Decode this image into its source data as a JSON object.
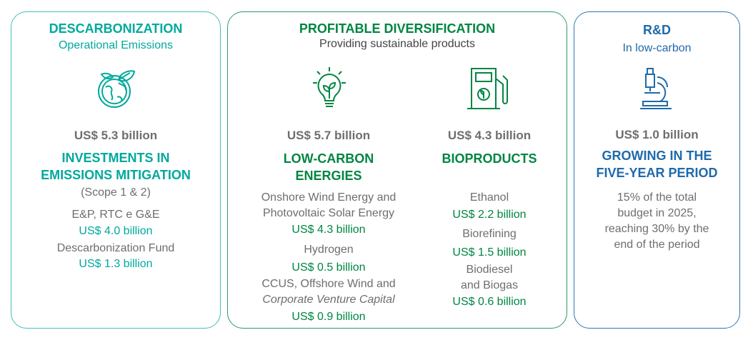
{
  "panels": [
    {
      "title": "DESCARBONIZATION",
      "subtitle": "Operational Emissions",
      "amount": "US$ 5.3 billion",
      "heading": "INVESTMENTS IN\nEMISSIONS MITIGATION",
      "note": "(Scope 1 & 2)",
      "items": [
        {
          "label": "E&P, RTC e G&E",
          "amount": "US$ 4.0 billion"
        },
        {
          "label": "Descarbonization Fund",
          "amount": "US$ 1.3 billion"
        }
      ]
    },
    {
      "title": "PROFITABLE DIVERSIFICATION",
      "subtitle": "Providing sustainable products",
      "columns": [
        {
          "amount": "US$ 5.7 billion",
          "heading": "LOW-CARBON\nENERGIES",
          "items": [
            {
              "label": "Onshore Wind Energy and\nPhotovoltaic Solar Energy",
              "amount": "US$ 4.3 billion"
            },
            {
              "label": "Hydrogen",
              "amount": "US$ 0.5 billion"
            },
            {
              "label": "CCUS, Offshore Wind and",
              "label_italic": "Corporate Venture Capital",
              "amount": "US$ 0.9 billion"
            }
          ]
        },
        {
          "amount": "US$ 4.3 billion",
          "heading": "BIOPRODUCTS",
          "items": [
            {
              "label": "Ethanol",
              "amount": "US$ 2.2 billion"
            },
            {
              "label": "Biorefining",
              "amount": "US$ 1.5 billion"
            },
            {
              "label": "Biodiesel\nand Biogas",
              "amount": "US$ 0.6 billion"
            }
          ]
        }
      ]
    },
    {
      "title": "R&D",
      "subtitle": "In low-carbon",
      "amount": "US$ 1.0 billion",
      "heading": "GROWING IN THE\nFIVE-YEAR PERIOD",
      "note": "15% of the total\nbudget in 2025,\nreaching 30% by the\nend of the period"
    }
  ]
}
